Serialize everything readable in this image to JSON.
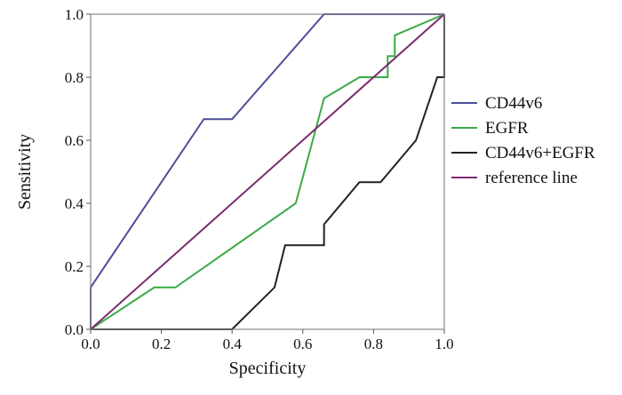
{
  "chart_data": {
    "type": "line",
    "title": "",
    "xlabel": "Specificity",
    "ylabel": "Sensitivity",
    "xlim": [
      0.0,
      1.0
    ],
    "ylim": [
      0.0,
      1.0
    ],
    "x_ticks": [
      "0.0",
      "0.2",
      "0.4",
      "0.6",
      "0.8",
      "1.0"
    ],
    "y_ticks": [
      "0.0",
      "0.2",
      "0.4",
      "0.6",
      "0.8",
      "1.0"
    ],
    "grid": false,
    "legend_position": "right",
    "series": [
      {
        "name": "CD44v6",
        "color": "#4b4e9b",
        "x": [
          0.0,
          0.0,
          0.32,
          0.4,
          0.66,
          1.0
        ],
        "y": [
          0.0,
          0.133,
          0.667,
          0.667,
          1.0,
          1.0
        ]
      },
      {
        "name": "EGFR",
        "color": "#3aaa45",
        "x": [
          0.0,
          0.18,
          0.24,
          0.58,
          0.66,
          0.76,
          0.84,
          0.84,
          0.86,
          0.86,
          1.0
        ],
        "y": [
          0.0,
          0.133,
          0.133,
          0.4,
          0.733,
          0.8,
          0.8,
          0.867,
          0.867,
          0.933,
          1.0
        ]
      },
      {
        "name": "CD44v6+EGFR",
        "color": "#222222",
        "x": [
          0.0,
          0.4,
          0.52,
          0.55,
          0.66,
          0.66,
          0.76,
          0.82,
          0.92,
          0.96,
          0.98,
          1.0,
          1.0
        ],
        "y": [
          0.0,
          0.0,
          0.133,
          0.267,
          0.267,
          0.333,
          0.467,
          0.467,
          0.6,
          0.733,
          0.8,
          0.8,
          1.0
        ]
      },
      {
        "name": "reference line",
        "color": "#7b2a6e",
        "x": [
          0.0,
          1.0
        ],
        "y": [
          0.0,
          1.0
        ]
      }
    ]
  }
}
